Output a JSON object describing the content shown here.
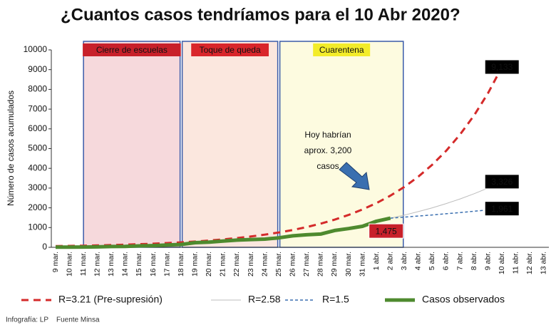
{
  "chart_data": {
    "type": "line",
    "title": "¿Cuantos casos tendríamos para el 10 Abr 2020?",
    "y_label": "Número de casos acumulados",
    "source": "Infografía: LP    Fuente Minsa",
    "annotation": "Hoy habrían aprox. 3,200 casos",
    "categories": [
      "9 mar.",
      "10 mar.",
      "11 mar.",
      "12 mar.",
      "13 mar.",
      "14 mar.",
      "15 mar.",
      "16 mar.",
      "17 mar.",
      "18 mar.",
      "19 mar.",
      "20 mar.",
      "21 mar.",
      "22 mar.",
      "23 mar.",
      "24 mar.",
      "25 mar.",
      "26 mar.",
      "27 mar.",
      "28 mar.",
      "29 mar.",
      "30 mar.",
      "31 mar.",
      "1 abr.",
      "2 abr.",
      "3 abr.",
      "4 abr.",
      "5 abr.",
      "6 abr.",
      "7 abr.",
      "8 abr.",
      "9 abr.",
      "10 abr.",
      "11 abr.",
      "12 abr.",
      "13 abr."
    ],
    "ylim": [
      0,
      10000
    ],
    "yticks": [
      0,
      1000,
      2000,
      3000,
      4000,
      5000,
      6000,
      7000,
      8000,
      9000,
      10000
    ],
    "periods": [
      {
        "label": "Cierre de escuelas",
        "start": "11 mar.",
        "end": "18 mar.",
        "fill": "#f6d9dc",
        "label_fill": "#c8202a",
        "label_color": "#ffffff"
      },
      {
        "label": "Toque de queda",
        "start": "18 mar.",
        "end": "25 mar.",
        "fill": "#fbe7de",
        "label_fill": "#d9262b",
        "label_color": "#ffffff"
      },
      {
        "label": "Cuarentena",
        "start": "25 mar.",
        "end": "3 abr.",
        "fill": "#fdfbe0",
        "label_fill": "#f3ec2a",
        "label_color": "#111111"
      }
    ],
    "series": [
      {
        "name": "R=3.21 (Pre-supresión)",
        "color": "#d42a2a",
        "style": "dashed",
        "width": 3,
        "values": [
          62,
          72,
          84,
          99,
          115,
          135,
          158,
          184,
          215,
          252,
          294,
          344,
          402,
          470,
          549,
          642,
          751,
          878,
          1026,
          1200,
          1402,
          1639,
          1916,
          2240,
          2619,
          3061,
          3579,
          4184,
          4890,
          5717,
          6683,
          7813,
          9133,
          null,
          null,
          null
        ],
        "value_labels": [
          null,
          null,
          null,
          null,
          null,
          null,
          null,
          null,
          null,
          null,
          null,
          null,
          null,
          null,
          null,
          null,
          null,
          null,
          null,
          null,
          null,
          null,
          null,
          null,
          null,
          null,
          null,
          null,
          null,
          null,
          null,
          null,
          "9,133",
          null,
          null,
          null
        ],
        "label_background": "#000000"
      },
      {
        "name": "R=2.58",
        "color": "#bdbdbd",
        "style": "solid",
        "width": 1,
        "values": [
          null,
          null,
          null,
          null,
          null,
          null,
          null,
          null,
          null,
          null,
          null,
          null,
          null,
          null,
          null,
          null,
          null,
          null,
          null,
          null,
          null,
          null,
          null,
          null,
          1475,
          1633,
          1808,
          2001,
          2215,
          2452,
          2715,
          3005,
          3326,
          null,
          null,
          null
        ],
        "value_labels": [
          null,
          null,
          null,
          null,
          null,
          null,
          null,
          null,
          null,
          null,
          null,
          null,
          null,
          null,
          null,
          null,
          null,
          null,
          null,
          null,
          null,
          null,
          null,
          null,
          null,
          null,
          null,
          null,
          null,
          null,
          null,
          null,
          "3,326",
          null,
          null,
          null
        ],
        "label_background": "#000000"
      },
      {
        "name": "R=1.5",
        "color": "#3a6fb0",
        "style": "dotted",
        "width": 1.5,
        "values": [
          null,
          null,
          null,
          null,
          null,
          null,
          null,
          null,
          null,
          null,
          null,
          null,
          null,
          null,
          null,
          null,
          null,
          null,
          null,
          null,
          null,
          null,
          null,
          null,
          1475,
          1530,
          1585,
          1640,
          1700,
          1760,
          1825,
          1890,
          1961,
          null,
          null,
          null
        ],
        "value_labels": [
          null,
          null,
          null,
          null,
          null,
          null,
          null,
          null,
          null,
          null,
          null,
          null,
          null,
          null,
          null,
          null,
          null,
          null,
          null,
          null,
          null,
          null,
          null,
          null,
          null,
          null,
          null,
          null,
          null,
          null,
          null,
          null,
          "1,961",
          null,
          null,
          null
        ],
        "label_background": "#000000"
      },
      {
        "name": "Casos observados",
        "color": "#4e8a2e",
        "style": "solid",
        "width": 5,
        "values": [
          9,
          11,
          13,
          22,
          38,
          43,
          71,
          86,
          117,
          145,
          234,
          263,
          318,
          363,
          395,
          416,
          480,
          580,
          635,
          671,
          852,
          950,
          1065,
          1323,
          1475,
          null,
          null,
          null,
          null,
          null,
          null,
          null,
          null,
          null,
          null,
          null
        ],
        "value_labels": [
          null,
          null,
          null,
          null,
          null,
          null,
          null,
          null,
          null,
          null,
          null,
          null,
          null,
          null,
          null,
          null,
          null,
          null,
          null,
          null,
          null,
          null,
          null,
          null,
          "1,475",
          null,
          null,
          null,
          null,
          null,
          null,
          null,
          null,
          null,
          null,
          null
        ],
        "label_background": "#c8202a"
      }
    ]
  }
}
